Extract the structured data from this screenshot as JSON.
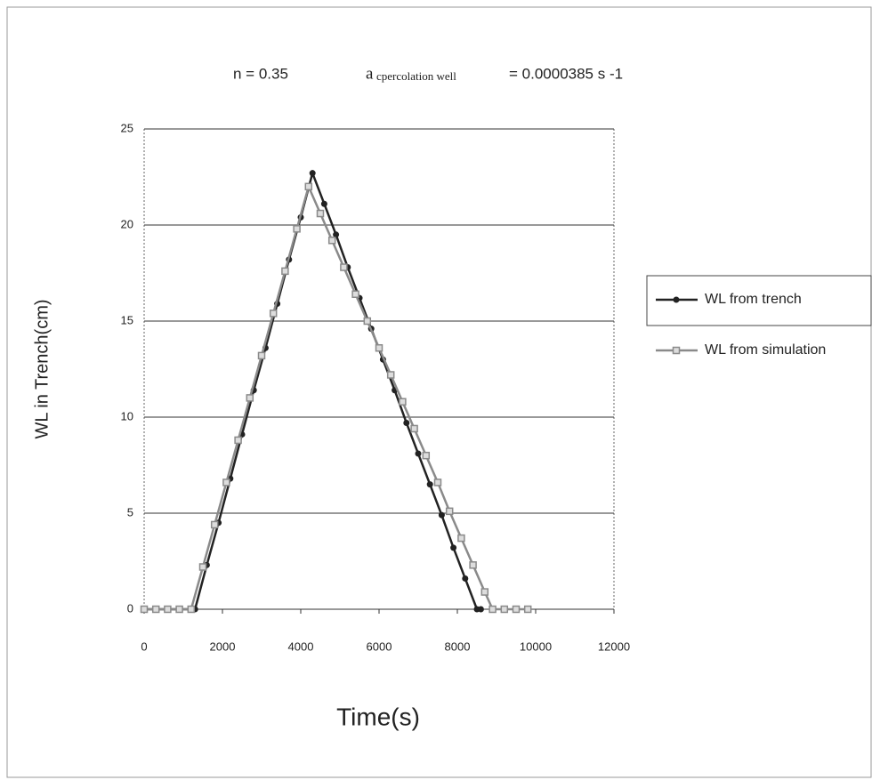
{
  "chart_data": {
    "type": "line",
    "title_parts": [
      "n  =  0.35",
      "a",
      "cpercolation well",
      "=  0.0000385  s -1"
    ],
    "x_label": "Time(s)",
    "y_label": "WL in Trench(cm)",
    "xlim": [
      0,
      12000
    ],
    "xticks": [
      0,
      2000,
      4000,
      6000,
      8000,
      10000,
      12000
    ],
    "ylim": [
      0,
      25
    ],
    "yticks": [
      0,
      5,
      10,
      15,
      20,
      25
    ],
    "grid": true,
    "legend": "right",
    "series": [
      {
        "name": "WL from trench",
        "color": "#222222",
        "marker": "circle",
        "x": [
          0,
          300,
          600,
          900,
          1300,
          1600,
          1900,
          2200,
          2500,
          2800,
          3100,
          3400,
          3700,
          4000,
          4300,
          4600,
          4900,
          5200,
          5500,
          5800,
          6100,
          6400,
          6700,
          7000,
          7300,
          7600,
          7900,
          8200,
          8500,
          8600
        ],
        "values": [
          0,
          0,
          0,
          0,
          0,
          2.3,
          4.5,
          6.8,
          9.1,
          11.4,
          13.6,
          15.9,
          18.2,
          20.4,
          22.7,
          21.1,
          19.5,
          17.8,
          16.2,
          14.6,
          13.0,
          11.4,
          9.7,
          8.1,
          6.5,
          4.9,
          3.2,
          1.6,
          0,
          0
        ]
      },
      {
        "name": "WL from simulation",
        "color": "#8a8a8a",
        "marker": "square",
        "x": [
          0,
          300,
          600,
          900,
          1200,
          1500,
          1800,
          2100,
          2400,
          2700,
          3000,
          3300,
          3600,
          3900,
          4200,
          4500,
          4800,
          5100,
          5400,
          5700,
          6000,
          6300,
          6600,
          6900,
          7200,
          7500,
          7800,
          8100,
          8400,
          8700,
          8900,
          9200,
          9500,
          9800
        ],
        "values": [
          0,
          0,
          0,
          0,
          0,
          2.2,
          4.4,
          6.6,
          8.8,
          11.0,
          13.2,
          15.4,
          17.6,
          19.8,
          22.0,
          20.6,
          19.2,
          17.8,
          16.4,
          15.0,
          13.6,
          12.2,
          10.8,
          9.4,
          8.0,
          6.6,
          5.1,
          3.7,
          2.3,
          0.9,
          0,
          0,
          0,
          0
        ]
      }
    ]
  }
}
